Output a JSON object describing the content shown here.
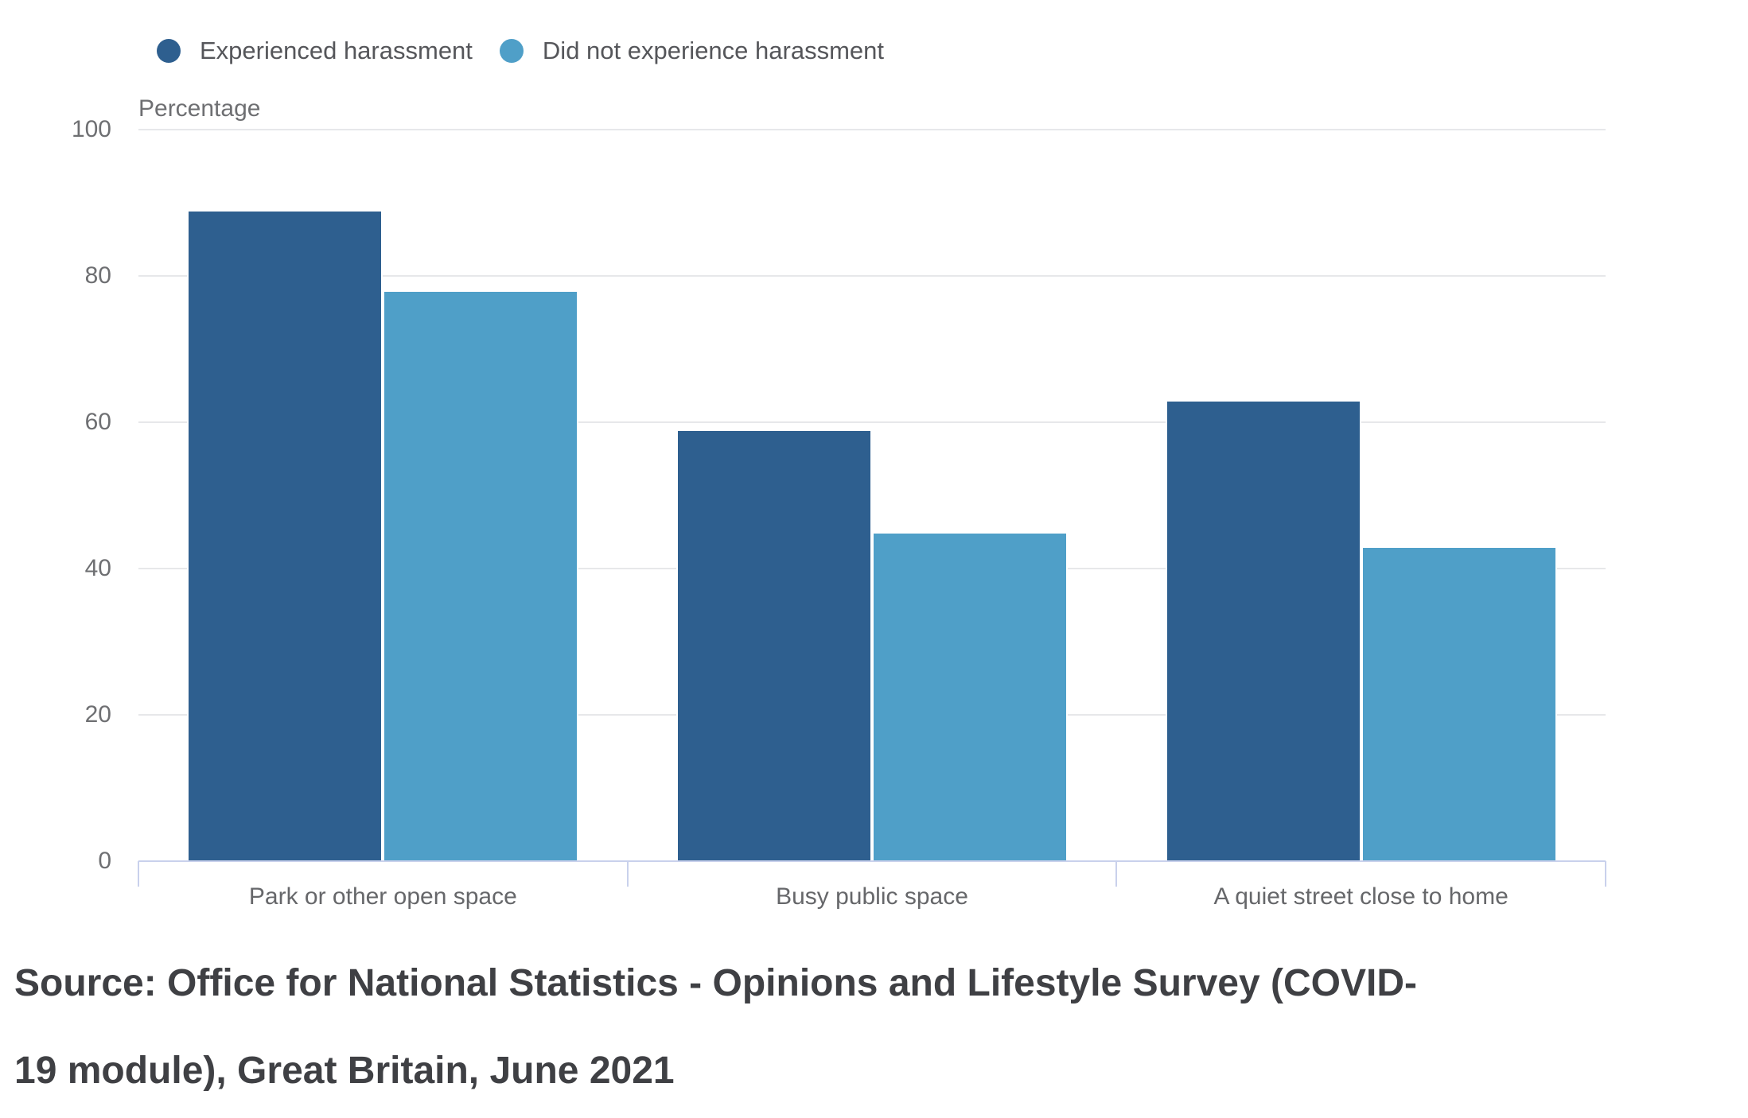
{
  "chart_data": {
    "type": "bar",
    "categories": [
      "Park or other open space",
      "Busy public space",
      "A quiet street close to home"
    ],
    "series": [
      {
        "name": "Experienced harassment",
        "color": "#2e5f8f",
        "values": [
          89,
          59,
          63
        ]
      },
      {
        "name": "Did not experience harassment",
        "color": "#4f9fc8",
        "values": [
          78,
          45,
          43
        ]
      }
    ],
    "title": "",
    "xlabel": "",
    "ylabel": "Percentage",
    "ylim": [
      0,
      100
    ],
    "yticks": [
      0,
      20,
      40,
      60,
      80,
      100
    ],
    "grid": "horizontal",
    "legend_position": "top-left"
  },
  "source": {
    "lines": [
      "Source: Office for National Statistics - Opinions and Lifestyle Survey (COVID-",
      "19 module), Great Britain, June 2021"
    ]
  },
  "colors": {
    "gridline": "#e7e8ea",
    "axis": "#c9d1ec",
    "text_muted": "#6e6f72",
    "text_legend": "#55565a",
    "text_source": "#3f4044",
    "background": "#ffffff"
  }
}
